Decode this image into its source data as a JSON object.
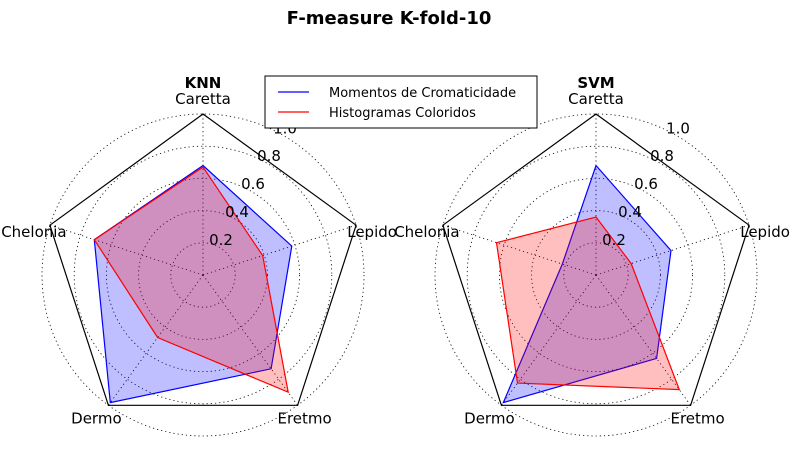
{
  "title": "F-measure K-fold-10",
  "legend": [
    {
      "label": "Momentos de Cromaticidade",
      "color": "#0000ff",
      "fill": "rgba(0,0,255,0.25)"
    },
    {
      "label": "Histogramas Coloridos",
      "color": "#ff0000",
      "fill": "rgba(255,0,0,0.25)"
    }
  ],
  "chart_data": [
    {
      "type": "radar",
      "title": "KNN",
      "categories": [
        "Caretta",
        "Lepido",
        "Eretmo",
        "Dermo",
        "Chelonia"
      ],
      "rticks": [
        0.2,
        0.4,
        0.6,
        0.8,
        1.0
      ],
      "rlim": [
        0,
        1.0
      ],
      "grid": true,
      "series": [
        {
          "name": "Momentos de Cromaticidade",
          "values": [
            0.68,
            0.58,
            0.72,
            0.98,
            0.71
          ]
        },
        {
          "name": "Histogramas Coloridos",
          "values": [
            0.67,
            0.39,
            0.9,
            0.48,
            0.71
          ]
        }
      ]
    },
    {
      "type": "radar",
      "title": "SVM",
      "categories": [
        "Caretta",
        "Lepido",
        "Eretmo",
        "Dermo",
        "Chelonia"
      ],
      "rticks": [
        0.2,
        0.4,
        0.6,
        0.8,
        1.0
      ],
      "rlim": [
        0,
        1.0
      ],
      "grid": true,
      "series": [
        {
          "name": "Momentos de Cromaticidade",
          "values": [
            0.68,
            0.49,
            0.64,
            0.98,
            0.22
          ]
        },
        {
          "name": "Histogramas Coloridos",
          "values": [
            0.36,
            0.23,
            0.88,
            0.83,
            0.65
          ]
        }
      ]
    }
  ]
}
